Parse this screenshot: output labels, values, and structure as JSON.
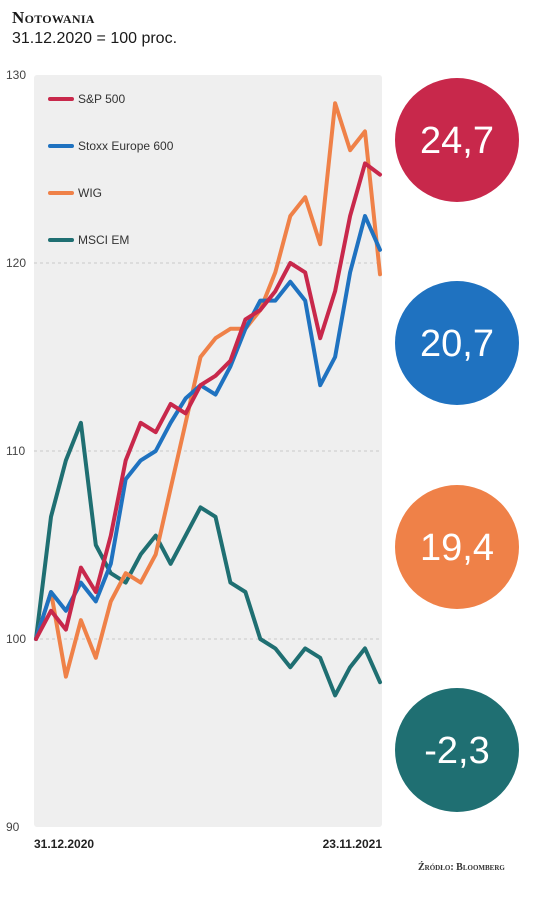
{
  "header": {
    "title": "Notowania",
    "subtitle": "31.12.2020 = 100 proc."
  },
  "source": "Źródło: Bloomberg",
  "chart_data": {
    "type": "line",
    "title": "Notowania",
    "subtitle": "31.12.2020 = 100 proc.",
    "x_range": [
      "31.12.2020",
      "23.11.2021"
    ],
    "x_tick_labels": [
      "31.12.2020",
      "23.11.2021"
    ],
    "ylim": [
      90,
      130
    ],
    "y_ticks": [
      90,
      100,
      110,
      120,
      130
    ],
    "y_tick_labels": [
      "90",
      "100",
      "110",
      "120",
      "130"
    ],
    "gridlines": true,
    "legend_placement": "top-left",
    "x": [
      "2020-12-31",
      "2021-01-15",
      "2021-01-29",
      "2021-02-12",
      "2021-02-26",
      "2021-03-12",
      "2021-03-26",
      "2021-04-09",
      "2021-04-23",
      "2021-05-07",
      "2021-05-21",
      "2021-06-04",
      "2021-06-18",
      "2021-07-02",
      "2021-07-16",
      "2021-07-30",
      "2021-08-13",
      "2021-08-27",
      "2021-09-10",
      "2021-09-24",
      "2021-10-08",
      "2021-10-22",
      "2021-11-05",
      "2021-11-23"
    ],
    "series": [
      {
        "name": "S&P 500",
        "color": "#c8284b",
        "values": [
          100,
          101.5,
          100.5,
          103.8,
          102.5,
          105.5,
          109.5,
          111.5,
          111.0,
          112.5,
          112.0,
          113.5,
          114.0,
          114.8,
          117.0,
          117.5,
          118.5,
          120.0,
          119.5,
          116.0,
          118.5,
          122.5,
          125.3,
          124.7
        ],
        "end_label": "24,7"
      },
      {
        "name": "Stoxx Europe 600",
        "color": "#1f72c0",
        "values": [
          100,
          102.5,
          101.5,
          103.0,
          102.0,
          104.0,
          108.5,
          109.5,
          110.0,
          111.5,
          112.8,
          113.5,
          113.0,
          114.5,
          116.5,
          118.0,
          118.0,
          119.0,
          118.0,
          113.5,
          115.0,
          119.5,
          122.5,
          120.7
        ],
        "end_label": "20,7"
      },
      {
        "name": "WIG",
        "color": "#ef8148",
        "values": [
          100,
          102.5,
          98.0,
          101.0,
          99.0,
          102.0,
          103.5,
          103.0,
          104.5,
          108.0,
          111.5,
          115.0,
          116.0,
          116.5,
          116.5,
          117.5,
          119.5,
          122.5,
          123.5,
          121.0,
          128.5,
          126.0,
          127.0,
          119.4
        ],
        "end_label": "19,4"
      },
      {
        "name": "MSCI EM",
        "color": "#1f6f72",
        "values": [
          100,
          106.5,
          109.5,
          111.5,
          105.0,
          103.5,
          103.0,
          104.5,
          105.5,
          104.0,
          105.5,
          107.0,
          106.5,
          103.0,
          102.5,
          100.0,
          99.5,
          98.5,
          99.5,
          99.0,
          97.0,
          98.5,
          99.5,
          97.7
        ],
        "end_label": "-2,3"
      }
    ]
  }
}
